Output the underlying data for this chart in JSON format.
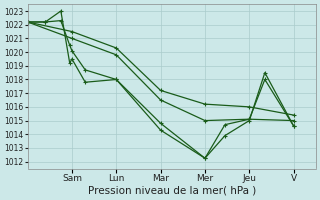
{
  "bg_color": "#cce8e8",
  "grid_color": "#aacccc",
  "line_color": "#1a5c1a",
  "xlabel": "Pression niveau de la mer( hPa )",
  "ylim": [
    1011.5,
    1023.5
  ],
  "yticks": [
    1012,
    1013,
    1014,
    1015,
    1016,
    1017,
    1018,
    1019,
    1020,
    1021,
    1022,
    1023
  ],
  "x_day_labels": [
    "Sam",
    "Lun",
    "Mar",
    "Mer",
    "Jeu",
    "V"
  ],
  "x_day_positions": [
    2,
    4,
    6,
    8,
    10,
    12
  ],
  "xlim": [
    0,
    13
  ],
  "lines": [
    {
      "x": [
        0.0,
        0.8,
        1.5,
        1.9,
        2.0,
        2.6,
        4.0,
        6.0,
        8.0,
        8.9,
        10.0,
        10.7,
        12.0
      ],
      "y": [
        1022.2,
        1022.2,
        1023.0,
        1019.2,
        1019.5,
        1017.8,
        1018.0,
        1014.3,
        1012.25,
        1013.9,
        1015.0,
        1018.5,
        1014.6
      ]
    },
    {
      "x": [
        0.0,
        0.8,
        1.5,
        1.9,
        2.0,
        2.6,
        4.0,
        6.0,
        8.0,
        8.9,
        10.0,
        10.7,
        12.0
      ],
      "y": [
        1022.2,
        1022.2,
        1022.3,
        1020.5,
        1020.1,
        1018.7,
        1018.0,
        1014.8,
        1012.25,
        1014.7,
        1015.1,
        1018.0,
        1014.6
      ]
    },
    {
      "x": [
        0.0,
        2.0,
        4.0,
        6.0,
        8.0,
        10.0,
        12.0
      ],
      "y": [
        1022.2,
        1021.0,
        1019.8,
        1016.5,
        1015.0,
        1015.1,
        1015.0
      ]
    },
    {
      "x": [
        0.0,
        2.0,
        4.0,
        6.0,
        8.0,
        10.0,
        12.0
      ],
      "y": [
        1022.2,
        1021.5,
        1020.3,
        1017.2,
        1016.2,
        1016.0,
        1015.4
      ]
    }
  ],
  "marker_size": 3.5,
  "marker_ew": 0.8,
  "line_width": 0.9,
  "ytick_fontsize": 5.5,
  "xtick_fontsize": 6.5,
  "xlabel_fontsize": 7.5
}
